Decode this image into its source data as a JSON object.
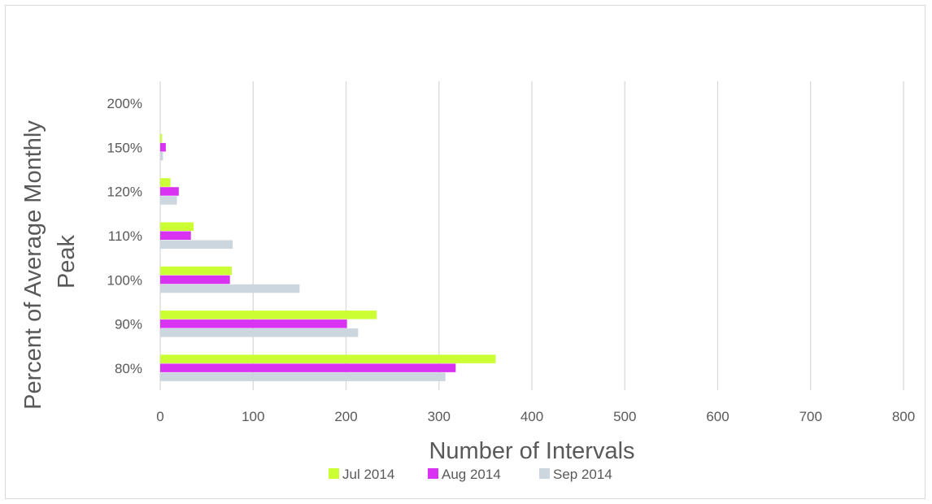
{
  "chart_data": {
    "type": "bar",
    "orientation": "horizontal",
    "title": "",
    "xlabel": "Number of Intervals",
    "ylabel": "Percent of Average Monthly Peak",
    "ylabel_lines": [
      "Percent of Average Monthly",
      "Peak"
    ],
    "categories": [
      "80%",
      "90%",
      "100%",
      "110%",
      "120%",
      "150%",
      "200%"
    ],
    "xlim": [
      0,
      800
    ],
    "xticks": [
      "0",
      "100",
      "200",
      "300",
      "400",
      "500",
      "600",
      "700",
      "800"
    ],
    "grid": "vertical",
    "legend_position": "bottom",
    "series": [
      {
        "name": "Jul 2014",
        "color": "#ccff33",
        "values": [
          361,
          233,
          77,
          36,
          11,
          2,
          0
        ]
      },
      {
        "name": "Aug 2014",
        "color": "#d833f2",
        "values": [
          318,
          201,
          75,
          33,
          20,
          6,
          0
        ]
      },
      {
        "name": "Sep 2014",
        "color": "#ccd6df",
        "values": [
          307,
          213,
          150,
          78,
          18,
          3,
          0
        ]
      }
    ]
  }
}
